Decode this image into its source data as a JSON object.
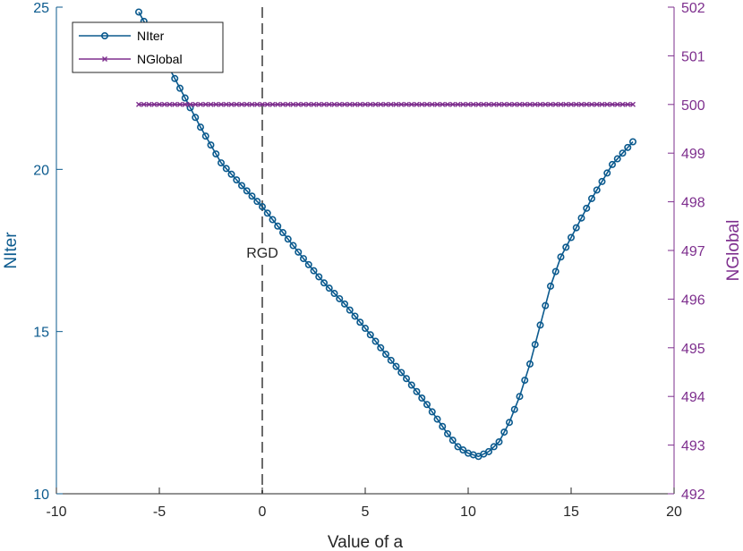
{
  "chart_data": {
    "type": "line",
    "title": "",
    "xlabel": "Value of a",
    "ylabel_left": "NIter",
    "ylabel_right": "NGlobal",
    "xlim": [
      -10,
      20
    ],
    "ylim_left": [
      10,
      25
    ],
    "ylim_right": [
      492,
      502
    ],
    "x_ticks": [
      -10,
      -5,
      0,
      5,
      10,
      15,
      20
    ],
    "y_left_ticks": [
      10,
      15,
      20,
      25
    ],
    "y_right_ticks": [
      492,
      493,
      494,
      495,
      496,
      497,
      498,
      499,
      500,
      501,
      502
    ],
    "grid": false,
    "legend_position": "top-left",
    "annotation": {
      "text": "RGD",
      "x": 0,
      "style": "dashed vertical line"
    },
    "series": [
      {
        "name": "NIter",
        "axis": "left",
        "color": "#0b5a8e",
        "marker": "circle",
        "knots": [
          [
            -6,
            24.85
          ],
          [
            -5,
            23.7
          ],
          [
            -4,
            22.5
          ],
          [
            -3,
            21.3
          ],
          [
            -2,
            20.2
          ],
          [
            -1,
            19.5
          ],
          [
            0,
            18.85
          ],
          [
            1,
            18.05
          ],
          [
            2,
            17.25
          ],
          [
            3,
            16.5
          ],
          [
            4,
            15.85
          ],
          [
            5,
            15.1
          ],
          [
            6,
            14.3
          ],
          [
            7,
            13.55
          ],
          [
            8,
            12.75
          ],
          [
            9,
            11.85
          ],
          [
            9.5,
            11.45
          ],
          [
            10,
            11.25
          ],
          [
            10.5,
            11.15
          ],
          [
            11,
            11.3
          ],
          [
            11.5,
            11.6
          ],
          [
            12,
            12.2
          ],
          [
            12.5,
            13.0
          ],
          [
            13,
            14.0
          ],
          [
            13.5,
            15.2
          ],
          [
            14,
            16.4
          ],
          [
            14.5,
            17.3
          ],
          [
            15,
            17.9
          ],
          [
            16,
            19.1
          ],
          [
            17,
            20.15
          ],
          [
            18,
            20.85
          ]
        ]
      },
      {
        "name": "NGlobal",
        "axis": "right",
        "color": "#7e2f8e",
        "marker": "x",
        "knots": [
          [
            -6,
            500
          ],
          [
            18,
            500
          ]
        ]
      }
    ],
    "x_step": 0.25
  }
}
